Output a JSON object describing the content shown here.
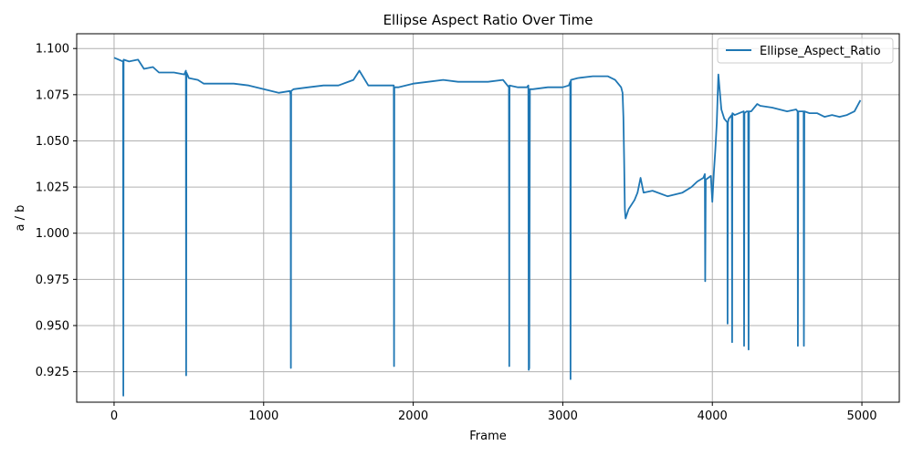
{
  "chart_data": {
    "type": "line",
    "title": "Ellipse Aspect Ratio Over Time",
    "xlabel": "Frame",
    "ylabel": "a / b",
    "xlim": [
      -250,
      5250
    ],
    "ylim": [
      0.9085,
      1.108
    ],
    "xticks": [
      0,
      1000,
      2000,
      3000,
      4000,
      5000
    ],
    "xtick_labels": [
      "0",
      "1000",
      "2000",
      "3000",
      "4000",
      "5000"
    ],
    "yticks": [
      0.925,
      0.95,
      0.975,
      1.0,
      1.025,
      1.05,
      1.075,
      1.1
    ],
    "ytick_labels": [
      "0.925",
      "0.950",
      "0.975",
      "1.000",
      "1.025",
      "1.050",
      "1.075",
      "1.100"
    ],
    "grid": true,
    "legend_position": "top-right",
    "colors": {
      "series": "#1f77b4",
      "grid": "#b0b0b0"
    },
    "series": [
      {
        "name": "Ellipse_Aspect_Ratio",
        "x": [
          0,
          60,
          62,
          64,
          100,
          160,
          200,
          260,
          300,
          400,
          470,
          480,
          482,
          484,
          500,
          560,
          600,
          700,
          800,
          900,
          1000,
          1100,
          1175,
          1180,
          1182,
          1184,
          1200,
          1300,
          1400,
          1500,
          1600,
          1640,
          1700,
          1800,
          1860,
          1870,
          1872,
          1874,
          1900,
          2000,
          2100,
          2200,
          2300,
          2400,
          2500,
          2600,
          2630,
          2640,
          2642,
          2644,
          2700,
          2760,
          2770,
          2772,
          2776,
          2780,
          2800,
          2900,
          3000,
          3040,
          3050,
          3052,
          3054,
          3100,
          3200,
          3300,
          3350,
          3380,
          3390,
          3400,
          3405,
          3410,
          3415,
          3420,
          3440,
          3480,
          3500,
          3520,
          3540,
          3600,
          3700,
          3800,
          3860,
          3900,
          3940,
          3950,
          3952,
          3956,
          3990,
          4000,
          4010,
          4020,
          4030,
          4040,
          4060,
          4080,
          4100,
          4102,
          4104,
          4110,
          4120,
          4130,
          4132,
          4134,
          4150,
          4180,
          4210,
          4212,
          4215,
          4230,
          4240,
          4242,
          4245,
          4260,
          4300,
          4320,
          4400,
          4500,
          4560,
          4570,
          4572,
          4575,
          4600,
          4610,
          4612,
          4615,
          4650,
          4700,
          4750,
          4800,
          4850,
          4900,
          4950,
          4990
        ],
        "values": [
          1.095,
          1.093,
          0.912,
          1.094,
          1.093,
          1.094,
          1.089,
          1.09,
          1.087,
          1.087,
          1.086,
          1.088,
          0.923,
          1.087,
          1.084,
          1.083,
          1.081,
          1.081,
          1.081,
          1.08,
          1.078,
          1.076,
          1.077,
          1.075,
          0.927,
          1.077,
          1.078,
          1.079,
          1.08,
          1.08,
          1.083,
          1.088,
          1.08,
          1.08,
          1.08,
          1.08,
          0.928,
          1.079,
          1.079,
          1.081,
          1.082,
          1.083,
          1.082,
          1.082,
          1.082,
          1.083,
          1.08,
          1.079,
          0.928,
          1.08,
          1.079,
          1.079,
          1.08,
          0.926,
          0.927,
          1.078,
          1.078,
          1.079,
          1.079,
          1.08,
          1.082,
          0.921,
          1.083,
          1.084,
          1.085,
          1.085,
          1.083,
          1.08,
          1.079,
          1.076,
          1.063,
          1.04,
          1.013,
          1.008,
          1.013,
          1.018,
          1.022,
          1.03,
          1.022,
          1.023,
          1.02,
          1.022,
          1.025,
          1.028,
          1.03,
          1.032,
          0.974,
          1.029,
          1.031,
          1.017,
          1.033,
          1.045,
          1.06,
          1.086,
          1.067,
          1.062,
          1.06,
          0.951,
          1.06,
          1.062,
          1.063,
          1.064,
          0.941,
          1.065,
          1.064,
          1.065,
          1.066,
          0.939,
          1.065,
          1.066,
          1.066,
          0.937,
          1.066,
          1.066,
          1.07,
          1.069,
          1.068,
          1.066,
          1.067,
          1.066,
          0.939,
          1.066,
          1.066,
          1.066,
          0.939,
          1.066,
          1.065,
          1.065,
          1.063,
          1.064,
          1.063,
          1.064,
          1.066,
          1.072
        ]
      }
    ]
  }
}
